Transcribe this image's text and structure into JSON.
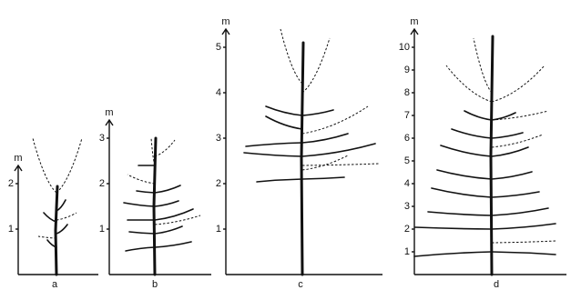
{
  "panels": [
    {
      "label": "a",
      "unit": "m",
      "ticks": [
        1,
        2
      ]
    },
    {
      "label": "b",
      "unit": "m",
      "ticks": [
        1,
        2,
        3
      ]
    },
    {
      "label": "c",
      "unit": "m",
      "ticks": [
        1,
        2,
        3,
        4,
        5
      ]
    },
    {
      "label": "d",
      "unit": "m",
      "ticks": [
        1,
        2,
        3,
        4,
        5,
        6,
        7,
        8,
        9,
        10
      ]
    }
  ]
}
